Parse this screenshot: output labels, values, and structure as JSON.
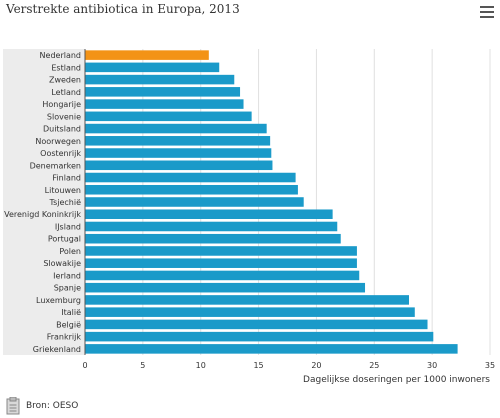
{
  "chart_data": {
    "type": "bar",
    "orientation": "horizontal",
    "title": "Verstrekte antibiotica in Europa, 2013",
    "xlabel": "Dagelijkse doseringen per 1000 inwoners",
    "ylabel": "",
    "xlim": [
      0,
      35
    ],
    "xticks": [
      0,
      5,
      10,
      15,
      20,
      25,
      30,
      35
    ],
    "grid": true,
    "highlight_category": "Nederland",
    "colors": {
      "bar": "#1a9ac9",
      "highlight": "#f39316",
      "grid": "#e0e0e0",
      "category_band": "#ececec"
    },
    "categories": [
      "Nederland",
      "Estland",
      "Zweden",
      "Letland",
      "Hongarije",
      "Slovenie",
      "Duitsland",
      "Noorwegen",
      "Oostenrijk",
      "Denemarken",
      "Finland",
      "Litouwen",
      "Tsjechië",
      "Verenigd Koninkrijk",
      "IJsland",
      "Portugal",
      "Polen",
      "Slowakije",
      "Ierland",
      "Spanje",
      "Luxemburg",
      "Italië",
      "België",
      "Frankrijk",
      "Griekenland"
    ],
    "values": [
      10.7,
      11.6,
      12.9,
      13.4,
      13.7,
      14.4,
      15.7,
      16.0,
      16.1,
      16.2,
      18.2,
      18.4,
      18.9,
      21.4,
      21.8,
      22.1,
      23.5,
      23.5,
      23.7,
      24.2,
      28.0,
      28.5,
      29.6,
      30.1,
      32.2
    ]
  },
  "header": {
    "menu_icon": "hamburger-menu-icon"
  },
  "footer": {
    "source_text": "Bron: OESO",
    "source_icon": "report-icon"
  }
}
